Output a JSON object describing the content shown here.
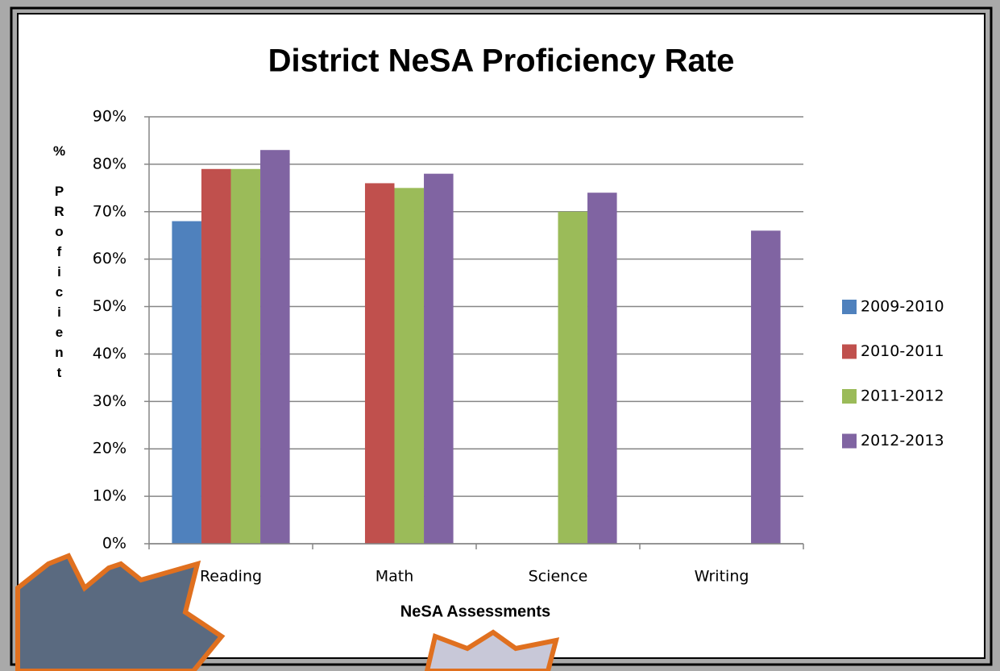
{
  "chart_data": {
    "type": "bar",
    "title": "District NeSA Proficiency Rate",
    "y_label": "% PRoficient",
    "x_label": "NeSA Assessments",
    "categories": [
      "Reading",
      "Math",
      "Science",
      "Writing"
    ],
    "series": [
      {
        "name": "2009-2010",
        "color": "#4f81bd",
        "values": [
          68,
          null,
          null,
          null
        ]
      },
      {
        "name": "2010-2011",
        "color": "#c0504d",
        "values": [
          79,
          76,
          null,
          null
        ]
      },
      {
        "name": "2011-2012",
        "color": "#9bbb59",
        "values": [
          79,
          75,
          70,
          null
        ]
      },
      {
        "name": "2012-2013",
        "color": "#8064a2",
        "values": [
          83,
          78,
          74,
          66
        ]
      }
    ],
    "ylim": [
      0,
      90
    ],
    "yticks": [
      {
        "value": 0,
        "label": "0%"
      },
      {
        "value": 10,
        "label": "10%"
      },
      {
        "value": 20,
        "label": "20%"
      },
      {
        "value": 30,
        "label": "30%"
      },
      {
        "value": 40,
        "label": "40%"
      },
      {
        "value": 50,
        "label": "50%"
      },
      {
        "value": 60,
        "label": "60%"
      },
      {
        "value": 70,
        "label": "70%"
      },
      {
        "value": 80,
        "label": "80%"
      },
      {
        "value": 90,
        "label": "90%"
      }
    ],
    "grid": true,
    "legend": "right"
  }
}
